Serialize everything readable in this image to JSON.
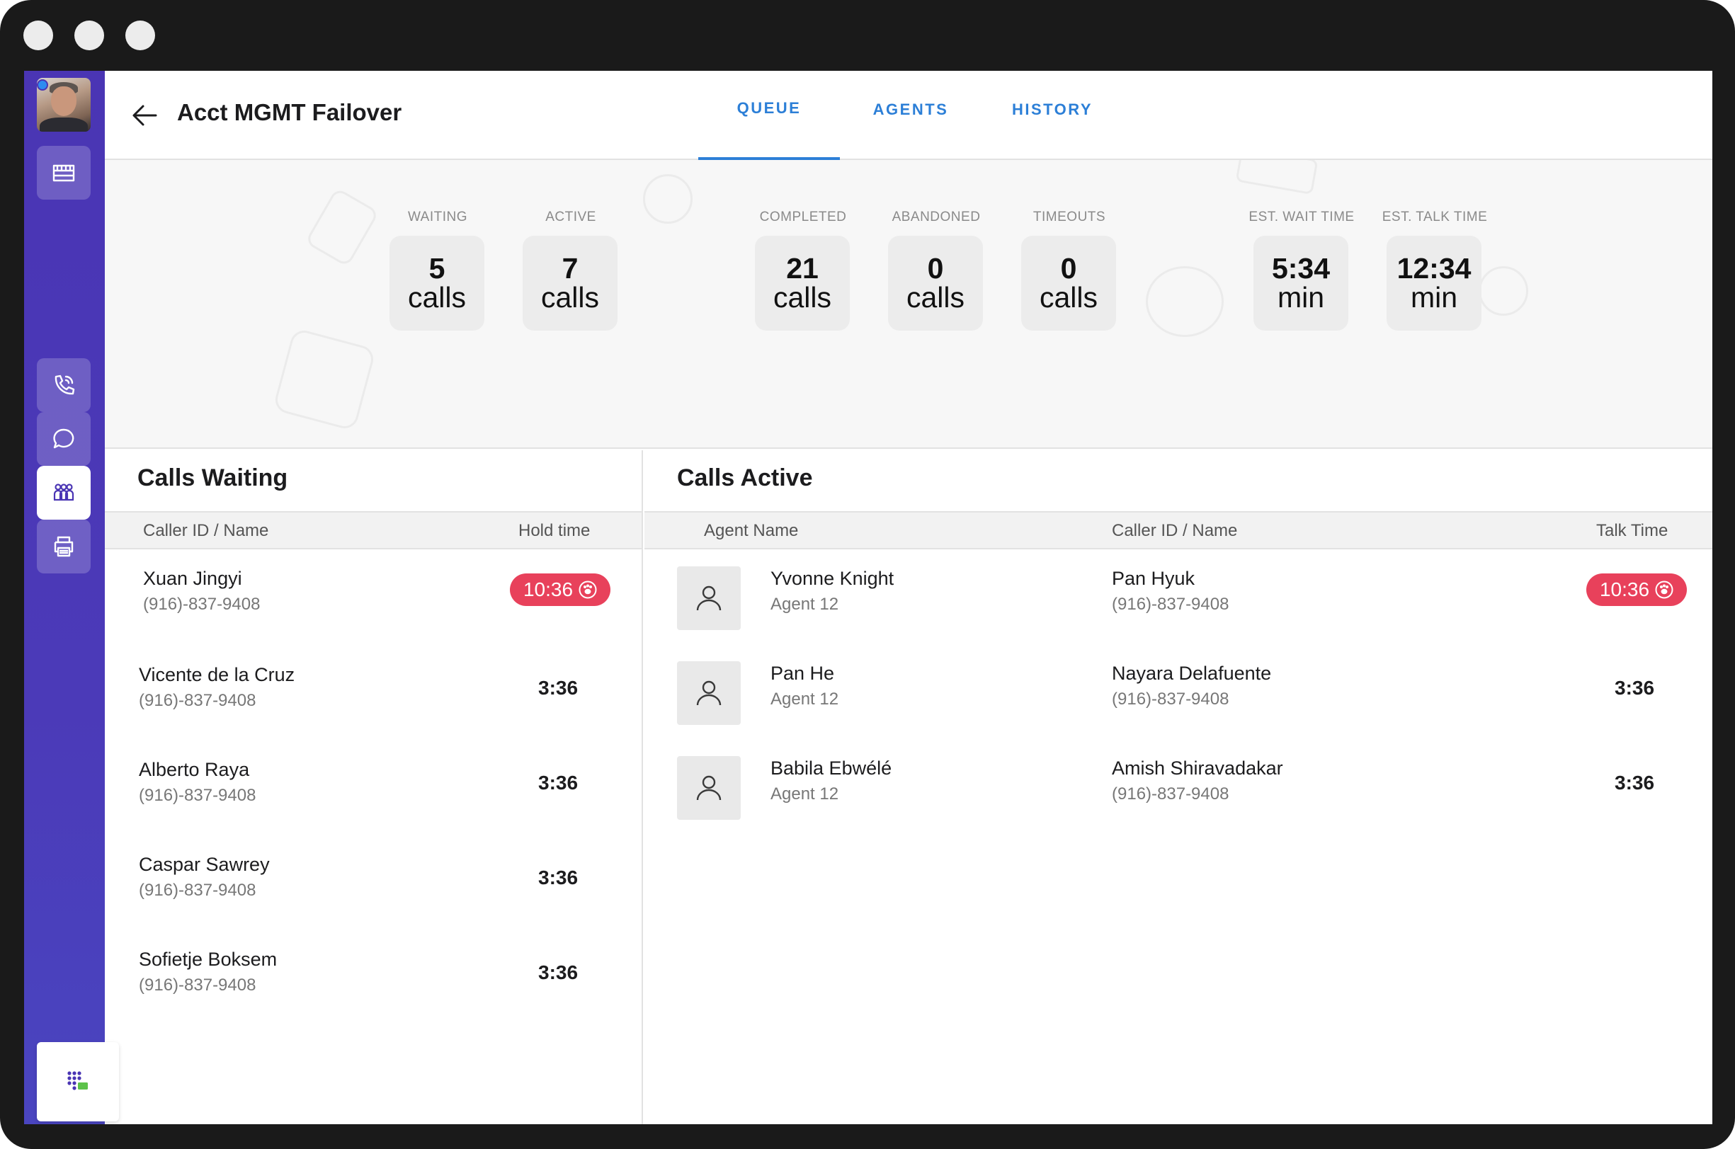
{
  "window": {
    "controls": [
      "dot",
      "dot",
      "dot"
    ]
  },
  "sidebar": {
    "avatar": "user-avatar",
    "items": [
      {
        "name": "sidebar-item-store",
        "icon": "store-icon",
        "active": false
      },
      {
        "name": "sidebar-item-calls",
        "icon": "phone-icon",
        "active": false
      },
      {
        "name": "sidebar-item-chat",
        "icon": "chat-icon",
        "active": false
      },
      {
        "name": "sidebar-item-queues",
        "icon": "group-icon",
        "active": true
      },
      {
        "name": "sidebar-item-fax",
        "icon": "printer-icon",
        "active": false
      }
    ],
    "dialpad_icon": "dialpad-icon",
    "accent": "#4a35b4"
  },
  "header": {
    "title": "Acct MGMT Failover",
    "tabs": [
      {
        "label": "QUEUE",
        "active": true
      },
      {
        "label": "AGENTS",
        "active": false
      },
      {
        "label": "HISTORY",
        "active": false
      }
    ],
    "tab_color": "#2c7fd7"
  },
  "stats": [
    {
      "label": "WAITING",
      "value": "5",
      "unit": "calls"
    },
    {
      "label": "ACTIVE",
      "value": "7",
      "unit": "calls"
    },
    {
      "label": "COMPLETED",
      "value": "21",
      "unit": "calls"
    },
    {
      "label": "ABANDONED",
      "value": "0",
      "unit": "calls"
    },
    {
      "label": "TIMEOUTS",
      "value": "0",
      "unit": "calls"
    },
    {
      "label": "EST. WAIT TIME",
      "value": "5:34",
      "unit": "min"
    },
    {
      "label": "EST. TALK TIME",
      "value": "12:34",
      "unit": "min"
    }
  ],
  "calls_waiting": {
    "title": "Calls Waiting",
    "columns": {
      "caller": "Caller ID / Name",
      "hold": "Hold time"
    },
    "rows": [
      {
        "name": "Xuan Jingyi",
        "phone": "(916)-837-9408",
        "time": "10:36",
        "alert": true
      },
      {
        "name": "Vicente de la Cruz",
        "phone": "(916)-837-9408",
        "time": "3:36",
        "alert": false
      },
      {
        "name": "Alberto Raya",
        "phone": "(916)-837-9408",
        "time": "3:36",
        "alert": false
      },
      {
        "name": "Caspar Sawrey",
        "phone": "(916)-837-9408",
        "time": "3:36",
        "alert": false
      },
      {
        "name": "Sofietje Boksem",
        "phone": "(916)-837-9408",
        "time": "3:36",
        "alert": false
      }
    ]
  },
  "calls_active": {
    "title": "Calls Active",
    "columns": {
      "agent": "Agent Name",
      "caller": "Caller ID / Name",
      "talk": "Talk Time"
    },
    "rows": [
      {
        "agent": "Yvonne Knight",
        "agent_sub": "Agent 12",
        "caller": "Pan Hyuk",
        "phone": "(916)-837-9408",
        "time": "10:36",
        "alert": true
      },
      {
        "agent": "Pan He",
        "agent_sub": "Agent 12",
        "caller": "Nayara Delafuente",
        "phone": "(916)-837-9408",
        "time": "3:36",
        "alert": false
      },
      {
        "agent": "Babila Ebwélé",
        "agent_sub": "Agent 12",
        "caller": "Amish Shiravadakar",
        "phone": "(916)-837-9408",
        "time": "3:36",
        "alert": false
      }
    ]
  },
  "alert_color": "#e8415b"
}
